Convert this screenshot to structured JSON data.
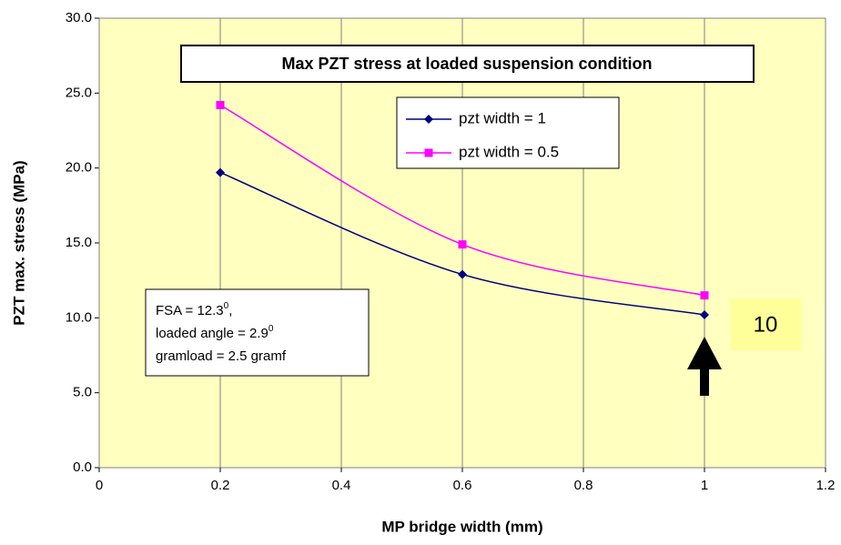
{
  "chart_data": {
    "type": "line",
    "title": "Max PZT stress at loaded suspension condition",
    "x_label": "MP bridge width (mm)",
    "y_label": "PZT max. stress (MPa)",
    "x": [
      0.2,
      0.6,
      1
    ],
    "series": [
      {
        "name": "pzt width = 1",
        "color": "#000080",
        "marker": "diamond",
        "values": [
          19.7,
          12.9,
          10.2
        ]
      },
      {
        "name": "pzt width = 0.5",
        "color": "#ff00ff",
        "marker": "square",
        "values": [
          24.2,
          14.9,
          11.5
        ]
      }
    ],
    "xlim": [
      0,
      1.2
    ],
    "xticks": [
      0,
      0.2,
      0.4,
      0.6,
      0.8,
      1,
      1.2
    ],
    "ylim": [
      0,
      30
    ],
    "yticks": [
      {
        "value": 0,
        "label": "0.0"
      },
      {
        "value": 5,
        "label": "5.0"
      },
      {
        "value": 10,
        "label": "10.0"
      },
      {
        "value": 15,
        "label": "15.0"
      },
      {
        "value": 20,
        "label": "20.0"
      },
      {
        "value": 25,
        "label": "25.0"
      },
      {
        "value": 30,
        "label": "30.0"
      }
    ],
    "grid": "x",
    "smooth": true,
    "annotations": {
      "conditions": [
        {
          "text": "FSA = 12.3",
          "sup": "0",
          "after": ","
        },
        {
          "text": "loaded angle = 2.9",
          "sup": "0"
        },
        {
          "text": "gramload = 2.5 gramf"
        }
      ],
      "callout": "10"
    }
  }
}
